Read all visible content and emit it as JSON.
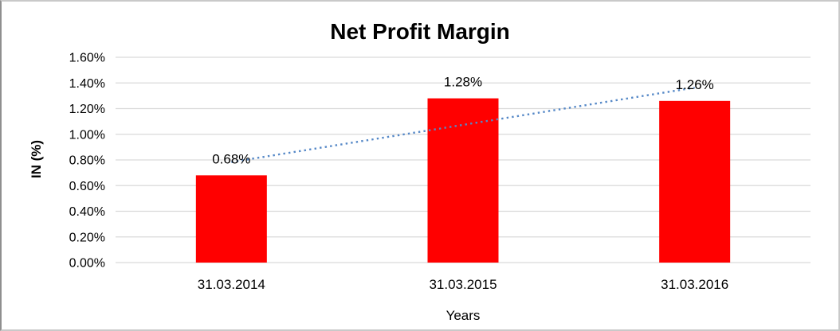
{
  "window": {
    "background": "#FFFFFF",
    "border_color": "#C9C9C9"
  },
  "chart_data": {
    "type": "bar",
    "title": "Net Profit Margin",
    "categories": [
      "31.03.2014",
      "31.03.2015",
      "31.03.2016"
    ],
    "values": [
      0.68,
      1.28,
      1.26
    ],
    "data_labels": [
      "0.68%",
      "1.28%",
      "1.26%"
    ],
    "xlabel": "Years",
    "ylabel": "IN (%)",
    "ylim": [
      0,
      1.6
    ],
    "ytick_step": 0.2,
    "yticks": [
      "0.00%",
      "0.20%",
      "0.40%",
      "0.60%",
      "0.80%",
      "1.00%",
      "1.20%",
      "1.40%",
      "1.60%"
    ],
    "grid": true,
    "legend": false,
    "bar_color": "#FF0000",
    "gridline_color": "#D9D9D9",
    "text_color": "#000000",
    "trendline": {
      "type": "linear",
      "style": "dotted",
      "color": "#5588C7"
    }
  }
}
